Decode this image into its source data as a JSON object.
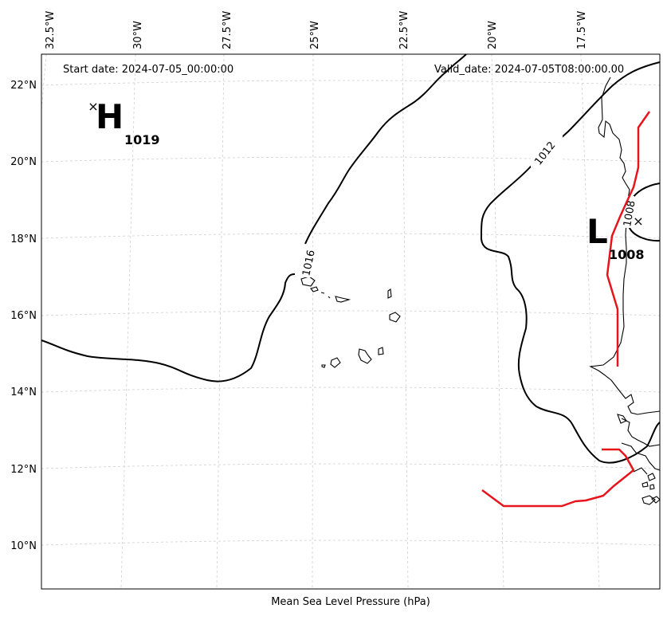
{
  "header": {
    "start_date": "Start date: 2024-07-05_00:00:00",
    "valid_date": "Valid_date: 2024-07-05T08:00:00.00"
  },
  "axes": {
    "lon_ticks": [
      "32.5°W",
      "30°W",
      "27.5°W",
      "25°W",
      "22.5°W",
      "20°W",
      "17.5°W"
    ],
    "lat_ticks": [
      "22°N",
      "20°N",
      "18°N",
      "16°N",
      "14°N",
      "12°N",
      "10°N"
    ],
    "xlabel": "Mean Sea Level Pressure (hPa)"
  },
  "isobar_labels": {
    "i1016": "1016",
    "i1012": "1012",
    "i1008": "1008"
  },
  "pressure_centers": {
    "high": {
      "symbol": "H",
      "value": "1019",
      "marker": "×"
    },
    "low": {
      "symbol": "L",
      "value": "1008",
      "marker": "×"
    }
  },
  "colors": {
    "front": "#e8141c",
    "isobar": "#000000",
    "grid": "#cfcfcf"
  }
}
